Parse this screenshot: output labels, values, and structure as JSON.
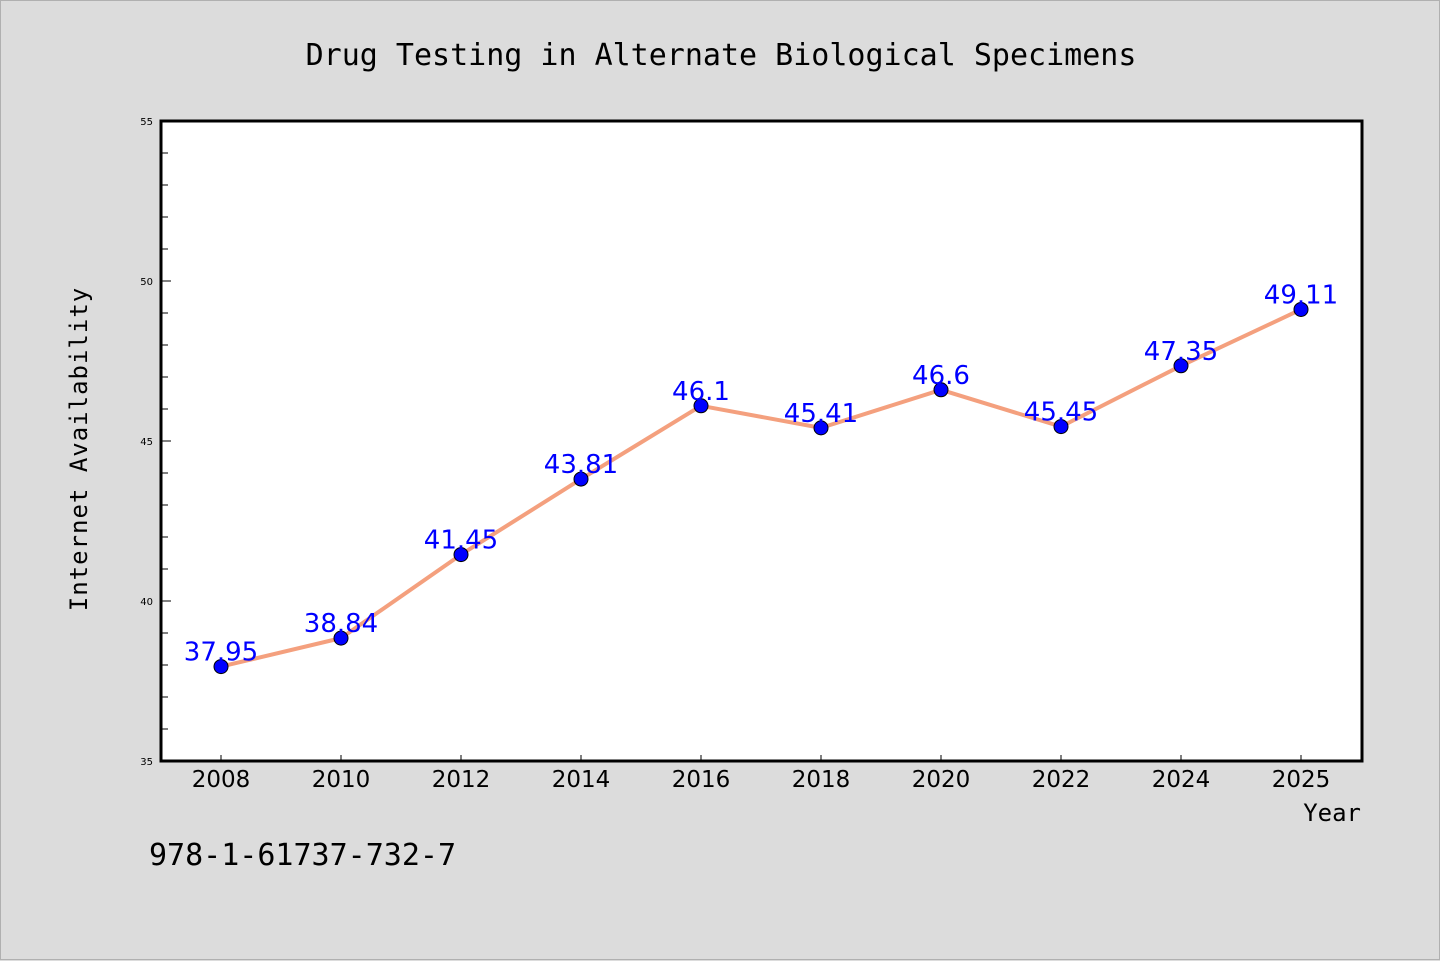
{
  "chart_data": {
    "type": "line",
    "title": "Drug Testing in Alternate Biological Specimens",
    "xlabel": "Year",
    "ylabel": "Internet Availability",
    "x": [
      "2008",
      "2010",
      "2012",
      "2014",
      "2016",
      "2018",
      "2020",
      "2022",
      "2024",
      "2025"
    ],
    "series": [
      {
        "values": [
          37.95,
          38.84,
          41.45,
          43.81,
          46.1,
          45.41,
          46.6,
          45.45,
          47.35,
          49.11
        ],
        "data_labels": [
          "37.95",
          "38.84",
          "41.45",
          "43.81",
          "46.1",
          "45.41",
          "46.6",
          "45.45",
          "47.35",
          "49.11"
        ],
        "line_color": "#f4a07e",
        "marker_color": "#0000ff"
      }
    ],
    "ylim": [
      35,
      55
    ],
    "yticks": [
      "35",
      "40",
      "45",
      "50",
      "55"
    ],
    "grid": false,
    "legend": "none"
  },
  "annotation": "978-1-61737-732-7",
  "colors": {
    "background": "#dcdcdc",
    "plot_background": "#ffffff",
    "label_color": "#0000ff"
  }
}
